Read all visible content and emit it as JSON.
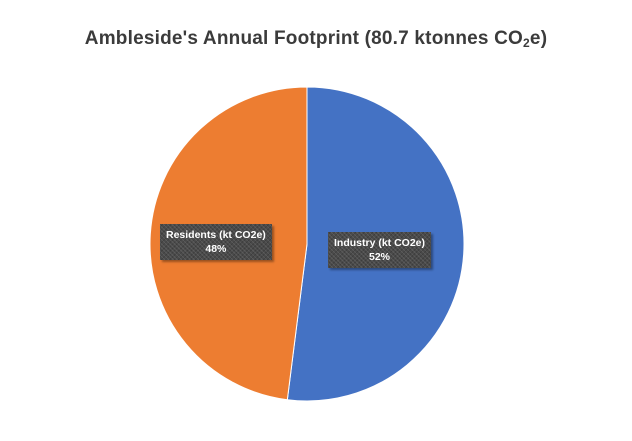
{
  "chart_data": {
    "type": "pie",
    "title_main": "Ambleside's Annual Footprint (80.7 ktonnes CO",
    "title_sub": "2",
    "title_end": "e)",
    "slices": [
      {
        "label": "Industry (kt CO2e)",
        "percent_text": "52%",
        "value": 52,
        "color": "#4472c4"
      },
      {
        "label": "Residents (kt CO2e)",
        "percent_text": "48%",
        "value": 48,
        "color": "#ed7d31"
      }
    ]
  }
}
